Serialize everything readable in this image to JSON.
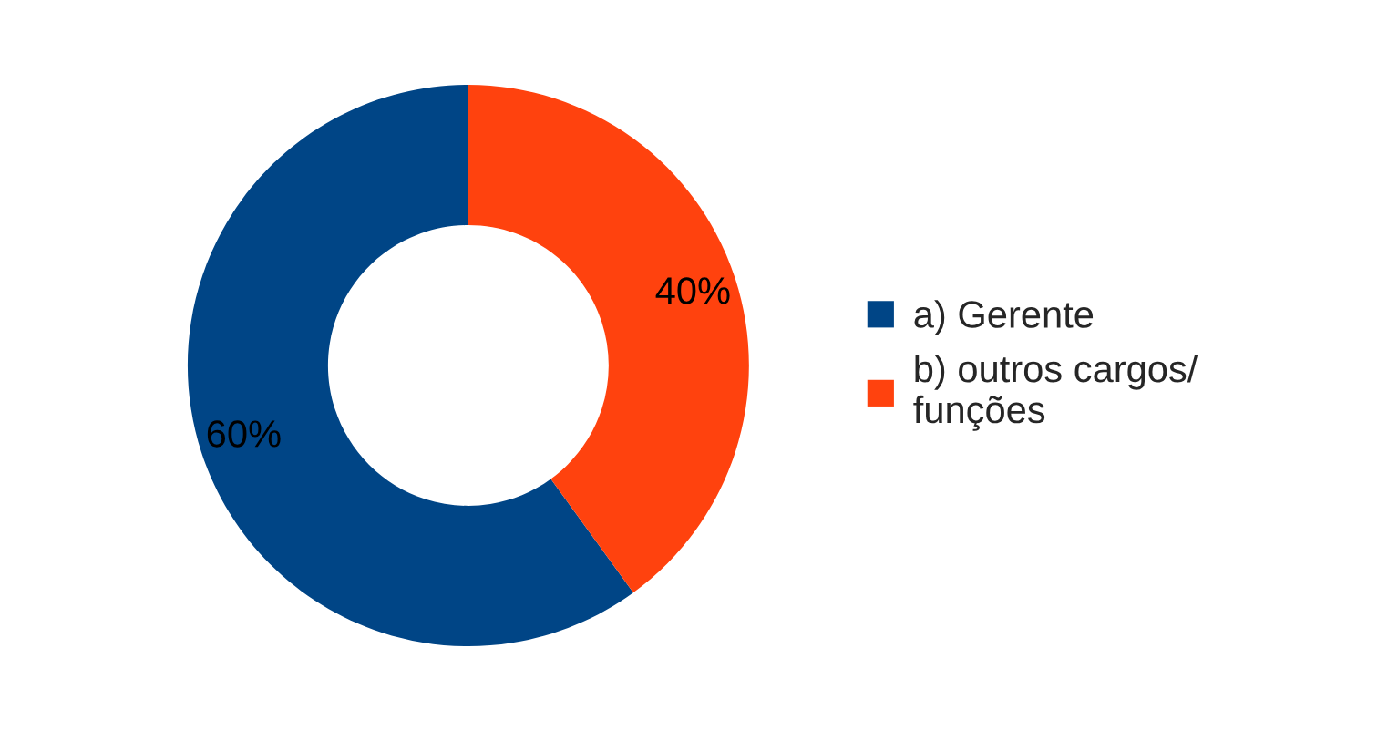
{
  "chart_data": {
    "type": "donut",
    "categories": [
      "a) Gerente",
      "b) outros cargos/\nfunções"
    ],
    "values": [
      60,
      40
    ],
    "colors": [
      "#004586",
      "#ff420e"
    ],
    "value_labels": [
      "60%",
      "40%"
    ],
    "legend": "right"
  }
}
